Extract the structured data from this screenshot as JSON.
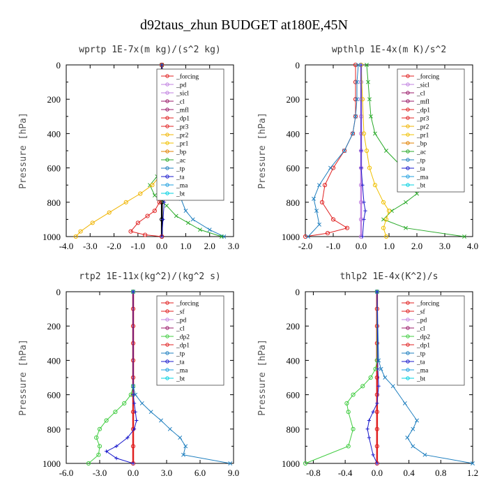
{
  "title": "d92taus_zhun  BUDGET at180E,45N",
  "chart_data": [
    {
      "type": "line",
      "panel_title": "wprtp  1E-7x(m kg)/(s^2 kg)",
      "ylabel": "Pressure [hPa]",
      "xlim": [
        -4.0,
        3.0
      ],
      "ylim": [
        1000,
        0
      ],
      "xticks": [
        "-4.0",
        "-3.0",
        "-2.0",
        "-1.0",
        "0.0",
        "1.0",
        "2.0",
        "3.0"
      ],
      "yticks": [
        "0",
        "200",
        "400",
        "600",
        "800",
        "1000"
      ],
      "legend": [
        "_forcing",
        "_pd",
        "_sicl",
        "_cl",
        "_mfl",
        "_dp1",
        "_pr3",
        "_pr2",
        "_pr1",
        "_bp",
        "_ac",
        "_tp",
        "_ta",
        "_ma",
        "_bt"
      ],
      "legend_position": "top-right",
      "series": [
        {
          "name": "_forcing",
          "color": "#000000",
          "marker": "circle",
          "x": [
            0,
            0,
            0,
            0,
            0,
            0,
            0,
            0,
            0,
            0,
            0
          ],
          "y": [
            0,
            100,
            200,
            300,
            400,
            500,
            600,
            700,
            800,
            900,
            1000
          ]
        },
        {
          "name": "_tp",
          "color": "#1f7fbf",
          "marker": "x",
          "x": [
            0,
            0,
            0,
            0.05,
            0.15,
            0.3,
            0.5,
            0.8,
            1.0,
            1.3,
            2.0,
            2.6
          ],
          "y": [
            0,
            300,
            500,
            550,
            600,
            650,
            700,
            780,
            850,
            900,
            960,
            1000
          ]
        },
        {
          "name": "_ac",
          "color": "#2aaa2a",
          "marker": "x",
          "x": [
            0,
            0,
            0,
            -0.05,
            -0.2,
            -0.5,
            -0.3,
            0.2,
            0.6,
            1.1,
            1.6,
            2.5
          ],
          "y": [
            0,
            300,
            550,
            600,
            650,
            700,
            760,
            820,
            880,
            920,
            960,
            1000
          ]
        },
        {
          "name": "_pr1",
          "color": "#f0b400",
          "marker": "circle",
          "x": [
            0,
            0,
            -0.1,
            -0.4,
            -0.9,
            -1.5,
            -2.2,
            -2.9,
            -3.4,
            -3.6
          ],
          "y": [
            0,
            550,
            650,
            700,
            750,
            800,
            860,
            920,
            970,
            1000
          ]
        },
        {
          "name": "_dp1",
          "color": "#e02020",
          "marker": "circle",
          "x": [
            0,
            0,
            -0.1,
            -0.3,
            -0.6,
            -1.0,
            -1.3,
            -0.7,
            0
          ],
          "y": [
            0,
            750,
            800,
            850,
            880,
            920,
            970,
            990,
            1000
          ]
        },
        {
          "name": "_ta",
          "color": "#1a1acc",
          "marker": "plus",
          "x": [
            0,
            0,
            0.05,
            0.1,
            0.05,
            0
          ],
          "y": [
            0,
            650,
            700,
            800,
            900,
            1000
          ]
        }
      ]
    },
    {
      "type": "line",
      "panel_title": "wpthlp  1E-4x(m K)/s^2",
      "ylabel": "Pressure [hPa]",
      "xlim": [
        -2.0,
        4.0
      ],
      "ylim": [
        1000,
        0
      ],
      "xticks": [
        "-2.0",
        "-1.0",
        "0.0",
        "1.0",
        "2.0",
        "3.0",
        "4.0"
      ],
      "yticks": [
        "0",
        "200",
        "400",
        "600",
        "800",
        "1000"
      ],
      "legend": [
        "_forcing",
        "_sicl",
        "_cl",
        "_mfl",
        "_dp1",
        "_pr3",
        "_pr2",
        "_pr1",
        "_bp",
        "_ac",
        "_tp",
        "_ta",
        "_ma",
        "_bt"
      ],
      "legend_position": "top-right",
      "series": [
        {
          "name": "_forcing",
          "color": "#c080e0",
          "marker": "circle",
          "x": [
            0,
            0,
            0,
            0,
            0,
            0,
            0,
            0,
            0,
            0,
            0
          ],
          "y": [
            0,
            100,
            200,
            300,
            400,
            500,
            600,
            700,
            800,
            900,
            1000
          ]
        },
        {
          "name": "_ac",
          "color": "#2aaa2a",
          "marker": "x",
          "x": [
            0.2,
            0.25,
            0.3,
            0.35,
            0.5,
            0.9,
            1.5,
            1.9,
            2.0,
            1.6,
            1.1,
            0.8,
            1.6,
            3.7
          ],
          "y": [
            0,
            100,
            200,
            300,
            400,
            500,
            600,
            700,
            750,
            800,
            850,
            900,
            950,
            1000
          ]
        },
        {
          "name": "_pr1",
          "color": "#f0c000",
          "marker": "circle",
          "x": [
            0,
            0.05,
            0.1,
            0.2,
            0.3,
            0.5,
            0.8,
            1.0,
            0.9,
            0.8,
            0.9
          ],
          "y": [
            0,
            200,
            400,
            500,
            600,
            700,
            800,
            850,
            900,
            950,
            1000
          ]
        },
        {
          "name": "_dp1",
          "color": "#e02020",
          "marker": "circle",
          "x": [
            -0.2,
            -0.2,
            -0.2,
            -0.2,
            -0.3,
            -0.6,
            -1.0,
            -1.3,
            -1.4,
            -1.0,
            -0.5,
            -1.2,
            -2.0
          ],
          "y": [
            0,
            100,
            200,
            300,
            400,
            500,
            600,
            700,
            800,
            900,
            950,
            980,
            1000
          ]
        },
        {
          "name": "_tp",
          "color": "#1f7fbf",
          "marker": "x",
          "x": [
            -0.1,
            -0.15,
            -0.15,
            -0.2,
            -0.3,
            -0.6,
            -1.1,
            -1.5,
            -1.7,
            -1.6,
            -1.5,
            -1.9
          ],
          "y": [
            0,
            100,
            200,
            300,
            400,
            500,
            600,
            700,
            780,
            850,
            930,
            1000
          ]
        },
        {
          "name": "_ta",
          "color": "#1a1acc",
          "marker": "plus",
          "x": [
            0,
            0,
            0,
            0.05,
            0.1,
            0.15,
            0.1,
            0.05
          ],
          "y": [
            0,
            500,
            600,
            700,
            800,
            850,
            900,
            1000
          ]
        }
      ]
    },
    {
      "type": "line",
      "panel_title": "rtp2  1E-11x(kg^2)/(kg^2 s)",
      "ylabel": "Pressure [hPa]",
      "xlim": [
        -6.0,
        9.0
      ],
      "ylim": [
        1000,
        0
      ],
      "xticks": [
        "-6.0",
        "-3.0",
        "0.0",
        "3.0",
        "6.0",
        "9.0"
      ],
      "yticks": [
        "0",
        "200",
        "400",
        "600",
        "800",
        "1000"
      ],
      "legend": [
        "_forcing",
        "_sf",
        "_pd",
        "_cl",
        "_dp2",
        "_dp1",
        "_tp",
        "_ta",
        "_ma",
        "_bt"
      ],
      "legend_position": "top-right",
      "series": [
        {
          "name": "_forcing",
          "color": "#e02020",
          "marker": "circle",
          "x": [
            0,
            0,
            0,
            0,
            0,
            0,
            0,
            0,
            0,
            0,
            0
          ],
          "y": [
            0,
            100,
            200,
            300,
            400,
            500,
            600,
            700,
            800,
            900,
            1000
          ]
        },
        {
          "name": "_dp1",
          "color": "#40cc40",
          "marker": "circle",
          "x": [
            0,
            0,
            -0.2,
            -0.8,
            -1.6,
            -2.4,
            -3.0,
            -3.3,
            -3.0,
            -3.1,
            -4.0
          ],
          "y": [
            0,
            550,
            600,
            650,
            700,
            750,
            800,
            850,
            900,
            950,
            1000
          ]
        },
        {
          "name": "_tp",
          "color": "#1f7fbf",
          "marker": "x",
          "x": [
            0,
            0,
            0.2,
            0.8,
            1.6,
            2.5,
            3.3,
            4.2,
            4.7,
            4.5,
            8.7
          ],
          "y": [
            0,
            550,
            600,
            650,
            700,
            750,
            800,
            850,
            900,
            950,
            1000
          ]
        },
        {
          "name": "_ta",
          "color": "#1a1acc",
          "marker": "plus",
          "x": [
            0,
            0,
            0.1,
            0.2,
            0.3,
            0.1,
            -0.5,
            -1.5,
            -2.4,
            -1.5,
            0
          ],
          "y": [
            0,
            600,
            650,
            700,
            750,
            800,
            850,
            900,
            930,
            970,
            1000
          ]
        }
      ]
    },
    {
      "type": "line",
      "panel_title": "thlp2  1E-4x(K^2)/s",
      "ylabel": "Pressure [hPa]",
      "xlim": [
        -0.9,
        1.2
      ],
      "ylim": [
        1000,
        0
      ],
      "xticks": [
        "-0.8",
        "-0.4",
        "0.0",
        "0.4",
        "0.8",
        "1.2"
      ],
      "yticks": [
        "0",
        "200",
        "400",
        "600",
        "800",
        "1000"
      ],
      "legend": [
        "_forcing",
        "_sf",
        "_pd",
        "_cl",
        "_dp2",
        "_dp1",
        "_tp",
        "_ta",
        "_ma",
        "_bt"
      ],
      "legend_position": "top-right",
      "series": [
        {
          "name": "_forcing",
          "color": "#e02020",
          "marker": "circle",
          "x": [
            0,
            0,
            0,
            0,
            0,
            0,
            0,
            0,
            0,
            0,
            0
          ],
          "y": [
            0,
            100,
            200,
            300,
            400,
            500,
            600,
            700,
            800,
            900,
            1000
          ]
        },
        {
          "name": "_dp1",
          "color": "#40cc40",
          "marker": "circle",
          "x": [
            0,
            0,
            -0.02,
            -0.08,
            -0.18,
            -0.3,
            -0.38,
            -0.36,
            -0.3,
            -0.36,
            -0.9
          ],
          "y": [
            0,
            400,
            450,
            500,
            550,
            600,
            650,
            700,
            800,
            900,
            1000
          ]
        },
        {
          "name": "_tp",
          "color": "#1f7fbf",
          "marker": "x",
          "x": [
            0,
            0.02,
            0.05,
            0.1,
            0.2,
            0.35,
            0.5,
            0.45,
            0.38,
            0.45,
            0.6,
            1.2
          ],
          "y": [
            0,
            400,
            450,
            500,
            550,
            650,
            750,
            800,
            850,
            900,
            950,
            1000
          ]
        },
        {
          "name": "_ta",
          "color": "#1a1acc",
          "marker": "plus",
          "x": [
            0,
            0.01,
            0.02,
            0.0,
            -0.05,
            -0.1,
            -0.12,
            -0.1,
            -0.05,
            0
          ],
          "y": [
            0,
            450,
            550,
            650,
            700,
            750,
            800,
            850,
            950,
            1000
          ]
        }
      ]
    }
  ]
}
